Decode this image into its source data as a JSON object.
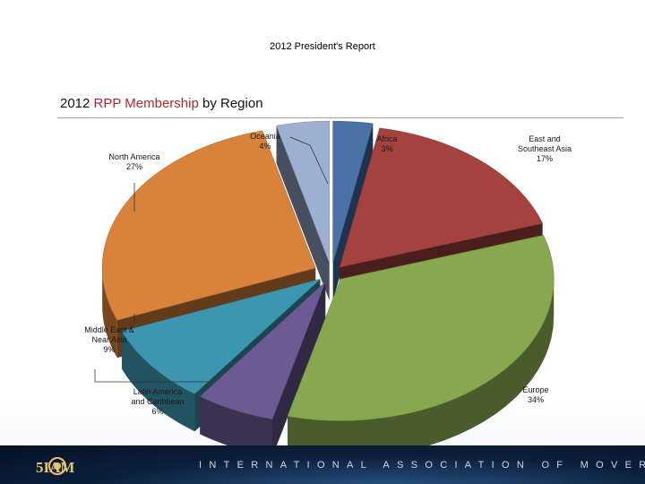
{
  "report_title": "2012 President's Report",
  "chart_title": {
    "prefix": "2012 ",
    "highlight": "RPP Membership",
    "suffix": " by Region"
  },
  "footer": {
    "logo_text": "5IAM",
    "org_name": "INTERNATIONAL ASSOCIATION OF MOVERS"
  },
  "chart_data": {
    "type": "pie",
    "title": "2012 RPP Membership by Region",
    "slices": [
      {
        "label": "Africa",
        "value": 3,
        "value_label": "3%",
        "color": "#4a72a8"
      },
      {
        "label": "East and Southeast Asia",
        "value": 17,
        "value_label": "17%",
        "color": "#a3423f"
      },
      {
        "label": "Europe",
        "value": 34,
        "value_label": "34%",
        "color": "#87a84e"
      },
      {
        "label": "Latin America and Caribbean",
        "value": 6,
        "value_label": "6%",
        "color": "#6c5a94"
      },
      {
        "label": "Middle East & Near Asia",
        "value": 9,
        "value_label": "9%",
        "color": "#3d96b0"
      },
      {
        "label": "North America",
        "value": 27,
        "value_label": "27%",
        "color": "#d9823b"
      },
      {
        "label": "Oceania",
        "value": 4,
        "value_label": "4%",
        "color": "#9eb0d2"
      }
    ],
    "legend": "none",
    "style": "3d-exploded"
  }
}
